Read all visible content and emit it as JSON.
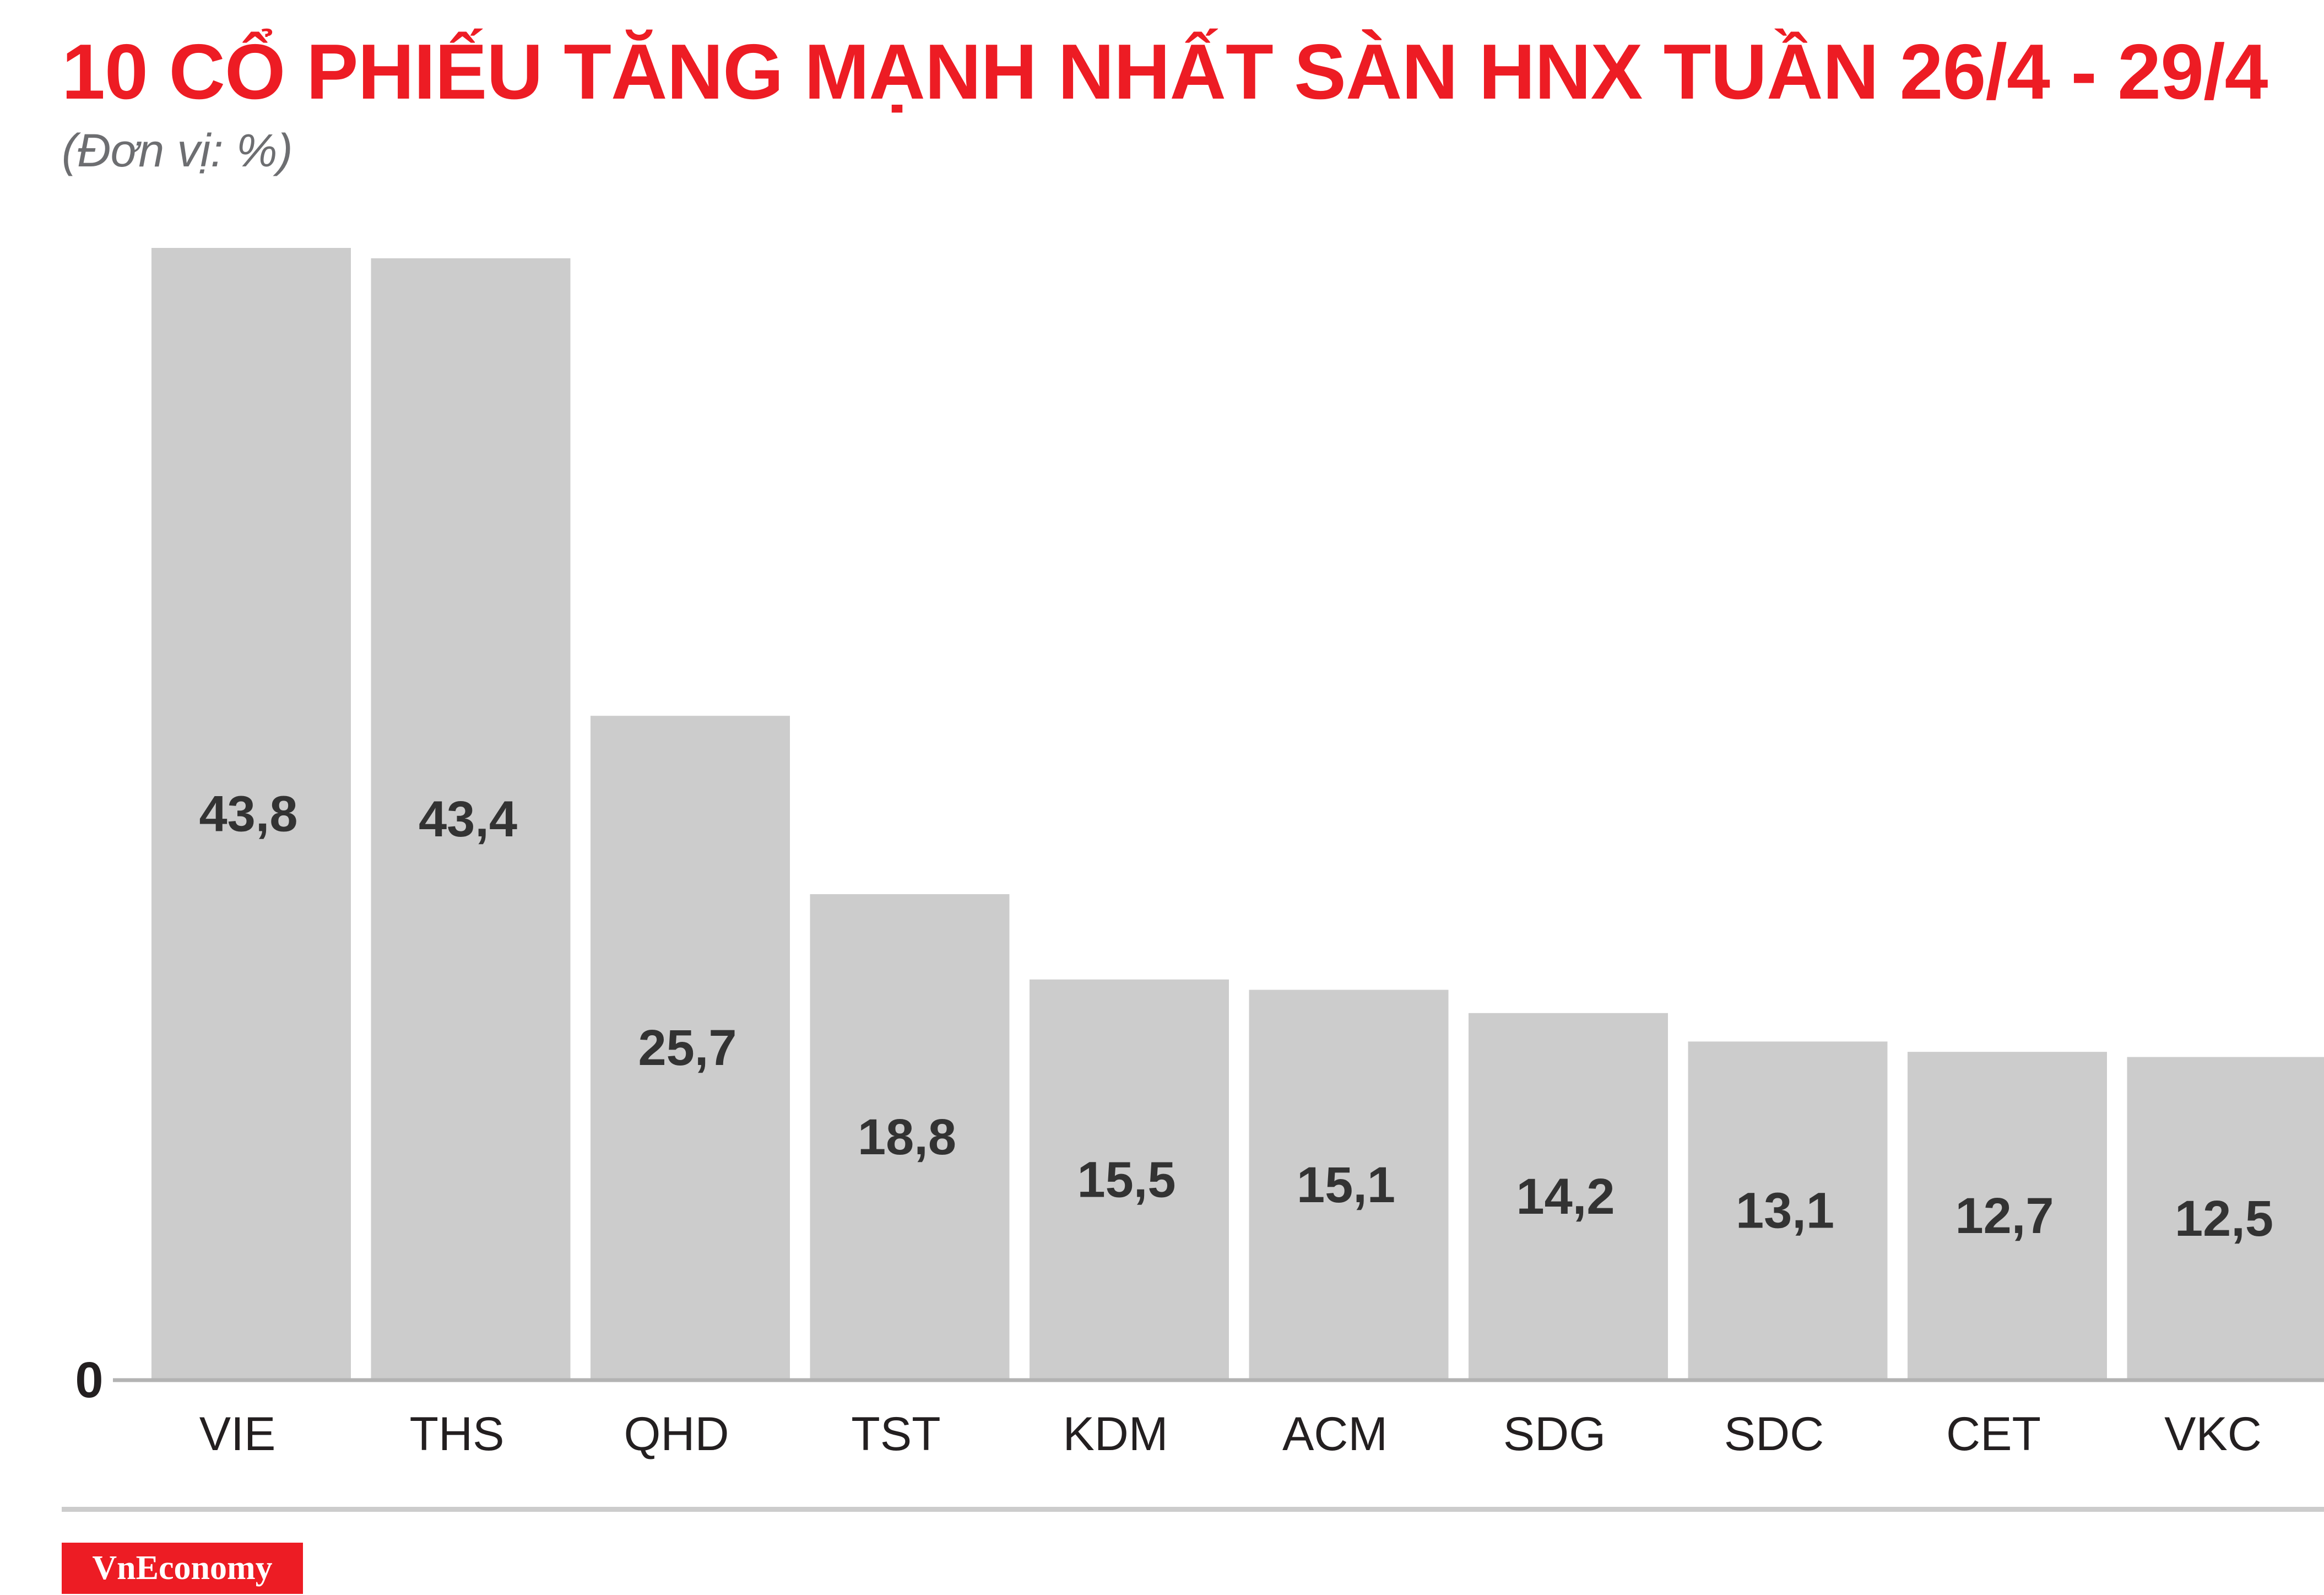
{
  "chart_data": {
    "type": "bar",
    "title": "10 CỔ PHIẾU TĂNG MẠNH NHẤT SÀN HNX TUẦN 26/4 - 29/4",
    "subtitle": "(Đơn vị: %)",
    "categories": [
      "VIE",
      "THS",
      "QHD",
      "TST",
      "KDM",
      "ACM",
      "SDG",
      "SDC",
      "CET",
      "VKC"
    ],
    "values": [
      43.8,
      43.4,
      25.7,
      18.8,
      15.5,
      15.1,
      14.2,
      13.1,
      12.7,
      12.5
    ],
    "value_labels": [
      "43,8",
      "43,4",
      "25,7",
      "18,8",
      "15,5",
      "15,1",
      "14,2",
      "13,1",
      "12,7",
      "12,5"
    ],
    "y_tick_labels": [
      "0"
    ],
    "ylim": [
      0,
      43.8
    ],
    "grid": false,
    "legend": "none",
    "bar_color": "#cccccc",
    "value_label_color": "#333333"
  },
  "brand": {
    "name": "VnEconomy",
    "color": "#ed1c24"
  }
}
